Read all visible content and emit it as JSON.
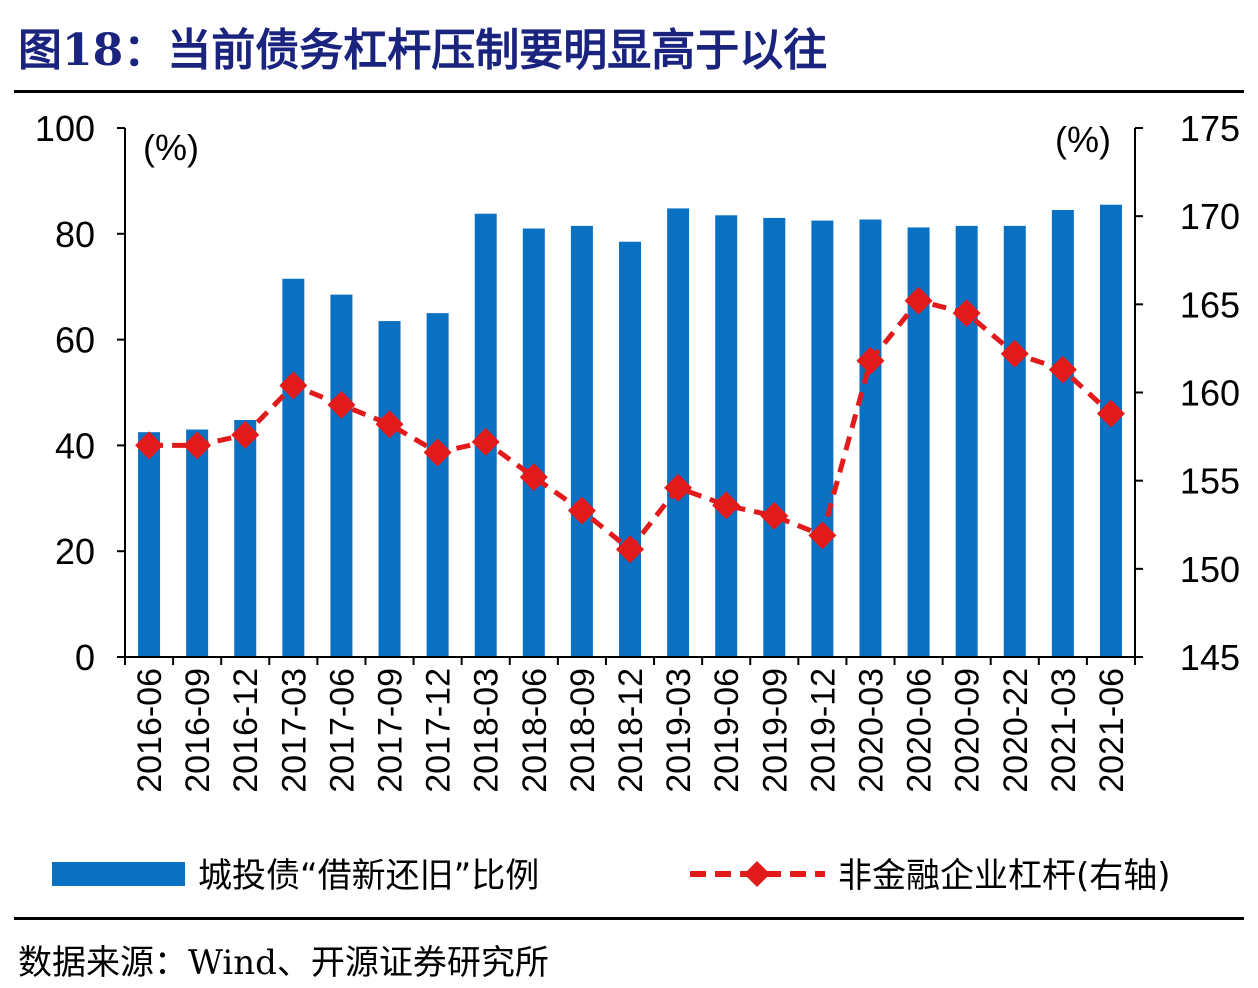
{
  "title": "图18：当前债务杠杆压制要明显高于以往",
  "source": "数据来源：Wind、开源证券研究所",
  "chart_data": {
    "type": "bar",
    "categories": [
      "2016-06",
      "2016-09",
      "2016-12",
      "2017-03",
      "2017-06",
      "2017-09",
      "2017-12",
      "2018-03",
      "2018-06",
      "2018-09",
      "2018-12",
      "2019-03",
      "2019-06",
      "2019-09",
      "2019-12",
      "2020-03",
      "2020-06",
      "2020-09",
      "2020-22",
      "2021-03",
      "2021-06"
    ],
    "series": [
      {
        "name": "城投债“借新还旧”比例",
        "type": "bar",
        "axis": "left",
        "color": "#0a70c2",
        "values": [
          42.5,
          43.0,
          44.8,
          71.5,
          68.5,
          63.5,
          65.0,
          83.8,
          81.0,
          81.5,
          78.5,
          84.8,
          83.5,
          83.0,
          82.5,
          82.7,
          81.2,
          81.5,
          81.5,
          84.5,
          85.5
        ]
      },
      {
        "name": "非金融企业杠杆(右轴)",
        "type": "line",
        "axis": "right",
        "color": "#e31a1a",
        "line_style": "dashed",
        "marker": "diamond",
        "values": [
          157.0,
          157.0,
          157.6,
          160.4,
          159.3,
          158.2,
          156.6,
          157.2,
          155.2,
          153.3,
          151.1,
          154.6,
          153.6,
          153.0,
          151.9,
          161.8,
          165.2,
          164.5,
          162.2,
          161.3,
          158.8
        ]
      }
    ],
    "y_left": {
      "label": "(%)",
      "ylim": [
        0,
        100
      ],
      "ticks": [
        "0",
        "20",
        "40",
        "60",
        "80",
        "100"
      ]
    },
    "y_right": {
      "label": "(%)",
      "ylim": [
        145,
        175
      ],
      "ticks": [
        "145",
        "150",
        "155",
        "160",
        "165",
        "170",
        "175"
      ]
    },
    "legend_position": "bottom",
    "grid": false
  }
}
